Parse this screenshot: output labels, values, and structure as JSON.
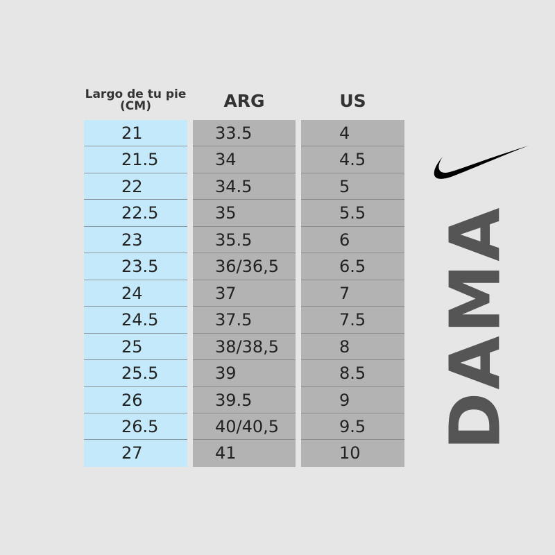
{
  "headers": {
    "cm": "Largo de tu pie (CM)",
    "arg": "ARG",
    "us": "US"
  },
  "cm": [
    "21",
    "21.5",
    "22",
    "22.5",
    "23",
    "23.5",
    "24",
    "24.5",
    "25",
    "25.5",
    "26",
    "26.5",
    "27"
  ],
  "arg": [
    "33.5",
    "34",
    "34.5",
    "35",
    "35.5",
    "36/36,5",
    "37",
    "37.5",
    "38/38,5",
    "39",
    "39.5",
    "40/40,5",
    "41"
  ],
  "us": [
    "4",
    "4.5",
    "5",
    "5.5",
    "6",
    "6.5",
    "7",
    "7.5",
    "8",
    "8.5",
    "9",
    "9.5",
    "10"
  ],
  "side_label": "DAMA",
  "logo": "nike-swoosh",
  "colors": {
    "cm_column": "#c3e9fb",
    "size_columns": "#b3b3b3",
    "background": "#e6e6e6"
  }
}
